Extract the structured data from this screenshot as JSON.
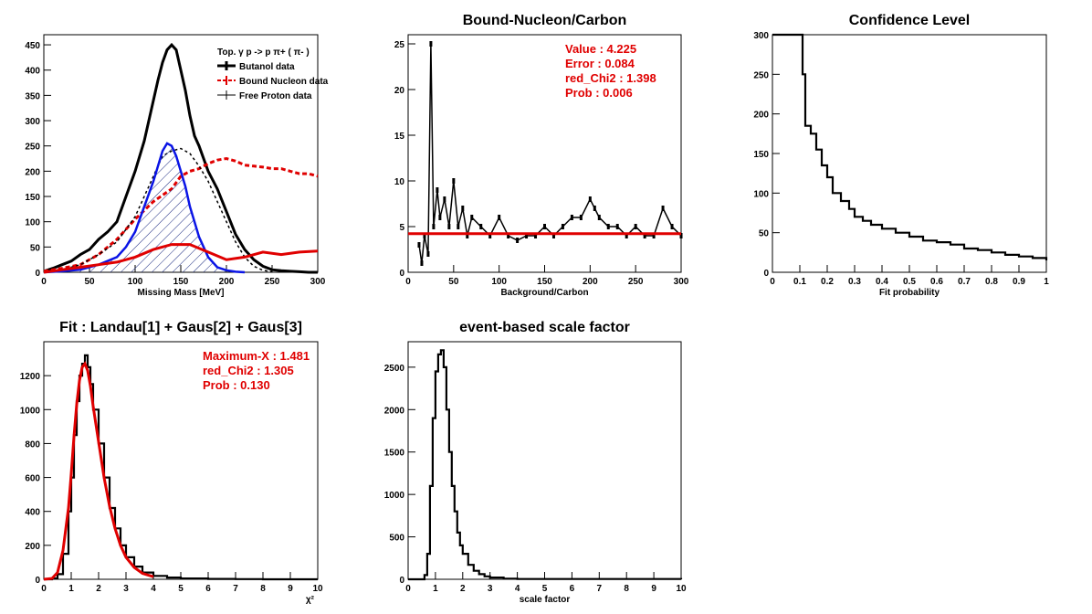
{
  "colors": {
    "black": "#000000",
    "red": "#e00000",
    "blue": "#0a14e6"
  },
  "chart_data": [
    {
      "id": "p1",
      "type": "line",
      "title": "",
      "xlabel": "Missing Mass [MeV]",
      "ylabel": "",
      "xlim": [
        0,
        300
      ],
      "ylim": [
        0,
        470
      ],
      "xticks": [
        0,
        50,
        100,
        150,
        200,
        250,
        300
      ],
      "yticks": [
        0,
        50,
        100,
        150,
        200,
        250,
        300,
        350,
        400,
        450
      ],
      "legend_title": "Top.  γ p -> p  π+ ( π- )",
      "legend": [
        "Butanol data",
        "Bound Nucleon data",
        "Free Proton data"
      ],
      "legend_position": "top-right",
      "series": [
        {
          "name": "Butanol data",
          "color": "#000000",
          "style": "solid-thick",
          "x": [
            0,
            10,
            20,
            30,
            40,
            50,
            60,
            70,
            80,
            90,
            100,
            110,
            120,
            125,
            130,
            135,
            140,
            145,
            150,
            155,
            160,
            165,
            170,
            180,
            190,
            200,
            210,
            220,
            230,
            240,
            250,
            260,
            270,
            280,
            290,
            300
          ],
          "y": [
            2,
            8,
            15,
            22,
            35,
            45,
            65,
            80,
            100,
            150,
            200,
            260,
            340,
            380,
            415,
            440,
            450,
            440,
            400,
            360,
            310,
            270,
            250,
            200,
            165,
            120,
            75,
            45,
            25,
            12,
            5,
            3,
            2,
            1,
            0,
            0
          ]
        },
        {
          "name": "Bound Nucleon data",
          "color": "#e00000",
          "style": "dashed",
          "x": [
            0,
            20,
            40,
            60,
            80,
            100,
            120,
            140,
            150,
            160,
            170,
            180,
            190,
            200,
            210,
            220,
            230,
            240,
            250,
            260,
            270,
            280,
            290,
            300
          ],
          "y": [
            2,
            8,
            15,
            35,
            65,
            105,
            140,
            165,
            190,
            200,
            205,
            215,
            222,
            225,
            220,
            212,
            210,
            208,
            205,
            205,
            200,
            195,
            195,
            190
          ]
        },
        {
          "name": "Free Proton data",
          "color": "#000000",
          "style": "dashed-thin",
          "x": [
            0,
            20,
            40,
            60,
            80,
            100,
            120,
            130,
            140,
            150,
            160,
            170,
            180,
            190,
            200,
            210,
            220,
            230,
            240,
            250
          ],
          "y": [
            0,
            5,
            15,
            35,
            60,
            110,
            190,
            230,
            240,
            245,
            235,
            210,
            180,
            140,
            100,
            60,
            30,
            12,
            4,
            1
          ]
        },
        {
          "name": "",
          "color": "#0a14e6",
          "style": "solid-hatched",
          "x": [
            0,
            20,
            40,
            60,
            80,
            90,
            100,
            110,
            120,
            125,
            130,
            135,
            140,
            145,
            150,
            155,
            160,
            170,
            180,
            190,
            200,
            210,
            220
          ],
          "y": [
            0,
            2,
            5,
            15,
            30,
            50,
            80,
            130,
            180,
            210,
            240,
            255,
            250,
            230,
            200,
            170,
            130,
            70,
            30,
            10,
            4,
            1,
            0
          ]
        },
        {
          "name": "",
          "color": "#e00000",
          "style": "solid-thick",
          "x": [
            0,
            20,
            40,
            60,
            80,
            100,
            120,
            140,
            160,
            180,
            200,
            220,
            240,
            260,
            280,
            300
          ],
          "y": [
            0,
            5,
            10,
            15,
            20,
            30,
            45,
            55,
            55,
            40,
            25,
            30,
            40,
            35,
            40,
            42
          ]
        }
      ]
    },
    {
      "id": "p2",
      "type": "line",
      "title": "Bound-Nucleon/Carbon",
      "xlabel": "Background/Carbon",
      "ylabel": "",
      "xlim": [
        0,
        300
      ],
      "ylim": [
        0,
        26
      ],
      "xticks": [
        0,
        50,
        100,
        150,
        200,
        250,
        300
      ],
      "yticks": [
        0,
        5,
        10,
        15,
        20,
        25
      ],
      "annotations": [
        "Value : 4.225",
        "Error : 0.084",
        "red_Chi2 : 1.398",
        "Prob : 0.006"
      ],
      "fit_value": 4.225,
      "series": [
        {
          "name": "",
          "color": "#000000",
          "style": "points",
          "x": [
            12,
            15,
            18,
            22,
            25,
            28,
            32,
            35,
            40,
            45,
            50,
            55,
            60,
            65,
            70,
            80,
            90,
            100,
            110,
            120,
            130,
            140,
            150,
            160,
            170,
            180,
            190,
            200,
            205,
            210,
            220,
            230,
            240,
            250,
            260,
            270,
            280,
            290,
            300
          ],
          "y": [
            3,
            1,
            4,
            2,
            25,
            5,
            9,
            6,
            8,
            5,
            10,
            5,
            7,
            4,
            6,
            5,
            4,
            6,
            4,
            3.5,
            4,
            4,
            5,
            4,
            5,
            6,
            6,
            8,
            7,
            6,
            5,
            5,
            4,
            5,
            4,
            4,
            7,
            5,
            4
          ]
        },
        {
          "name": "",
          "color": "#e00000",
          "style": "solid-thick",
          "x": [
            0,
            300
          ],
          "y": [
            4.225,
            4.225
          ]
        }
      ]
    },
    {
      "id": "p3",
      "type": "line",
      "title": "Confidence Level",
      "xlabel": "Fit probability",
      "ylabel": "",
      "xlim": [
        0,
        1
      ],
      "ylim": [
        0,
        300
      ],
      "xticks": [
        0,
        0.1,
        0.2,
        0.3,
        0.4,
        0.5,
        0.6,
        0.7,
        0.8,
        0.9,
        1
      ],
      "xtick_labels": [
        "0",
        "0.1",
        "0.2",
        "0.3",
        "0.4",
        "0.5",
        "0.6",
        "0.7",
        "0.8",
        "0.9",
        "1"
      ],
      "yticks": [
        0,
        50,
        100,
        150,
        200,
        250,
        300
      ],
      "series": [
        {
          "name": "",
          "color": "#000000",
          "style": "step",
          "x": [
            0,
            0.02,
            0.04,
            0.06,
            0.08,
            0.1,
            0.11,
            0.12,
            0.14,
            0.16,
            0.18,
            0.2,
            0.22,
            0.25,
            0.28,
            0.3,
            0.33,
            0.36,
            0.4,
            0.45,
            0.5,
            0.55,
            0.6,
            0.65,
            0.7,
            0.75,
            0.8,
            0.85,
            0.9,
            0.95,
            1
          ],
          "y": [
            300,
            300,
            300,
            300,
            300,
            300,
            250,
            185,
            175,
            155,
            135,
            120,
            100,
            90,
            80,
            70,
            65,
            60,
            55,
            50,
            45,
            40,
            38,
            35,
            30,
            28,
            25,
            22,
            20,
            18,
            15
          ]
        }
      ]
    },
    {
      "id": "p4",
      "type": "line",
      "title": "Fit : Landau[1] + Gaus[2] + Gaus[3]",
      "xlabel": "χ²",
      "ylabel": "",
      "xlim": [
        0,
        10
      ],
      "ylim": [
        0,
        1400
      ],
      "xticks": [
        0,
        1,
        2,
        3,
        4,
        5,
        6,
        7,
        8,
        9,
        10
      ],
      "yticks": [
        0,
        200,
        400,
        600,
        800,
        1000,
        1200
      ],
      "annotations": [
        "Maximum-X : 1.481",
        "red_Chi2 : 1.305",
        "Prob : 0.130"
      ],
      "series": [
        {
          "name": "",
          "color": "#000000",
          "style": "step",
          "x": [
            0,
            0.3,
            0.5,
            0.7,
            0.9,
            1.0,
            1.1,
            1.2,
            1.3,
            1.4,
            1.5,
            1.6,
            1.7,
            1.8,
            2.0,
            2.2,
            2.4,
            2.6,
            2.8,
            3.0,
            3.3,
            3.6,
            4.0,
            4.5,
            5.0,
            6.0,
            7.0,
            8.0,
            10.0
          ],
          "y": [
            0,
            5,
            30,
            150,
            400,
            600,
            850,
            1050,
            1200,
            1270,
            1320,
            1250,
            1150,
            1000,
            800,
            600,
            420,
            300,
            200,
            130,
            75,
            40,
            20,
            10,
            5,
            2,
            1,
            0,
            0
          ]
        },
        {
          "name": "",
          "color": "#e00000",
          "style": "solid-thick",
          "x": [
            0,
            0.3,
            0.5,
            0.7,
            0.9,
            1.0,
            1.1,
            1.2,
            1.3,
            1.4,
            1.5,
            1.6,
            1.7,
            1.8,
            2.0,
            2.2,
            2.4,
            2.6,
            2.8,
            3.0,
            3.3,
            3.6,
            4.0
          ],
          "y": [
            0,
            5,
            40,
            170,
            420,
            620,
            840,
            1030,
            1170,
            1250,
            1270,
            1230,
            1140,
            1020,
            810,
            600,
            430,
            300,
            200,
            130,
            70,
            35,
            15
          ]
        }
      ]
    },
    {
      "id": "p5",
      "type": "line",
      "title": "event-based scale factor",
      "xlabel": "scale factor",
      "ylabel": "",
      "xlim": [
        0,
        10
      ],
      "ylim": [
        0,
        2800
      ],
      "xticks": [
        0,
        1,
        2,
        3,
        4,
        5,
        6,
        7,
        8,
        9,
        10
      ],
      "yticks": [
        0,
        500,
        1000,
        1500,
        2000,
        2500
      ],
      "series": [
        {
          "name": "",
          "color": "#000000",
          "style": "step",
          "x": [
            0,
            0.4,
            0.6,
            0.7,
            0.8,
            0.9,
            1.0,
            1.1,
            1.2,
            1.3,
            1.4,
            1.5,
            1.6,
            1.7,
            1.8,
            1.9,
            2.0,
            2.2,
            2.4,
            2.6,
            2.8,
            3.0,
            3.5,
            4.0,
            10
          ],
          "y": [
            0,
            0,
            50,
            300,
            1100,
            1900,
            2450,
            2650,
            2700,
            2500,
            2000,
            1500,
            1100,
            800,
            550,
            400,
            300,
            170,
            100,
            60,
            35,
            20,
            8,
            3,
            0
          ]
        }
      ]
    }
  ]
}
